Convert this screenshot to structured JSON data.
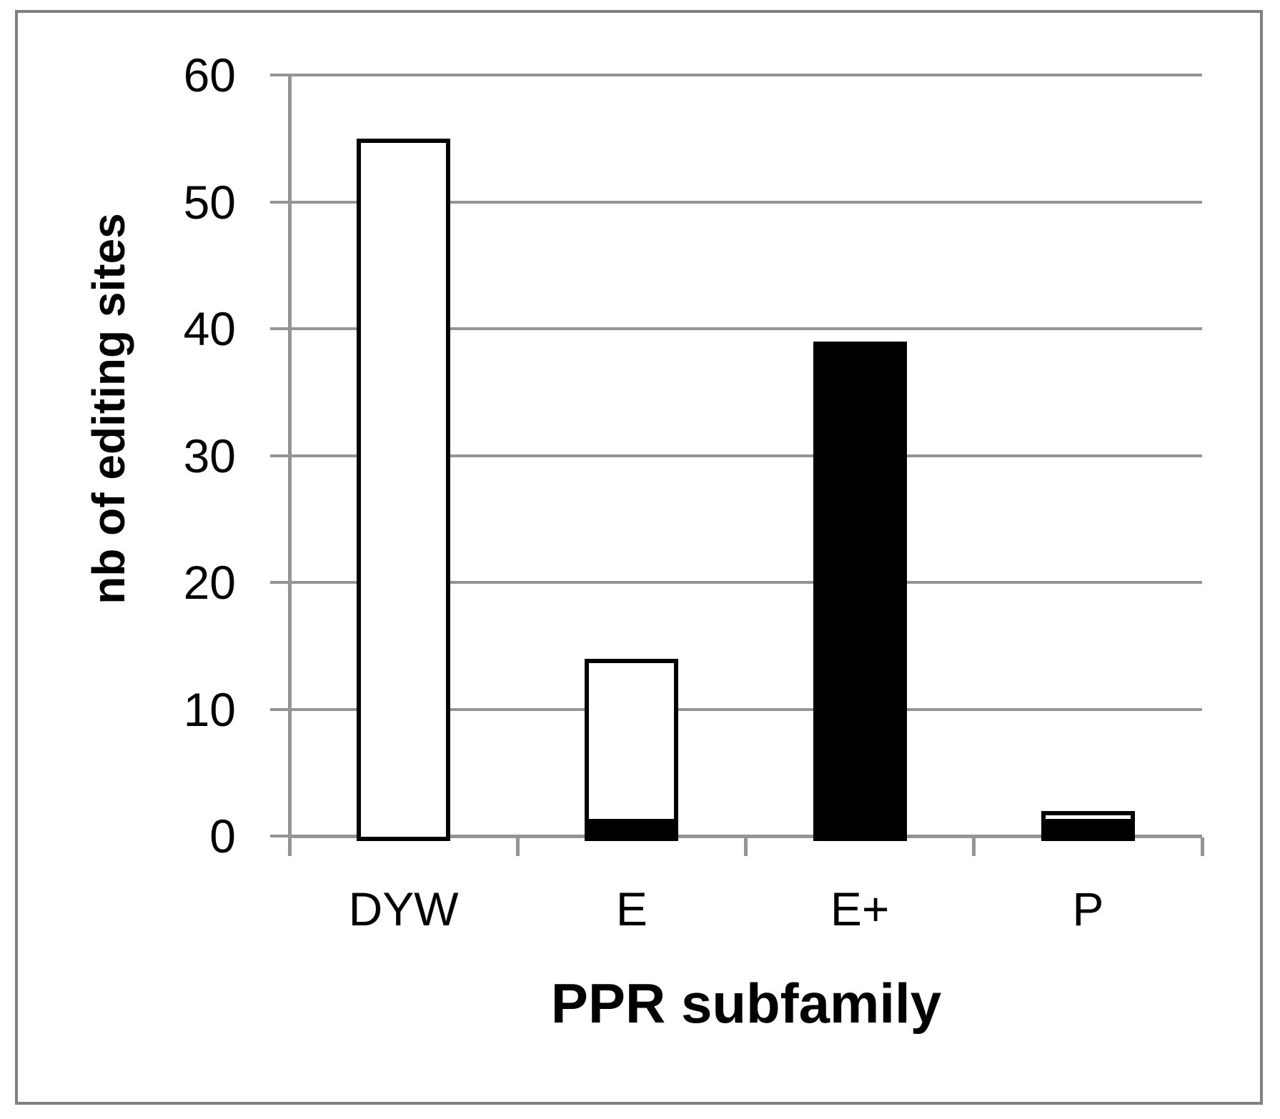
{
  "figure": {
    "background": "#ffffff",
    "border_color": "#808080"
  },
  "chart_data": {
    "type": "bar",
    "stacked": true,
    "title": "",
    "xlabel": "PPR subfamily",
    "ylabel": "nb of editing sites",
    "categories": [
      "DYW",
      "E",
      "E+",
      "P"
    ],
    "series": [
      {
        "name": "black-fill",
        "color": "#000000",
        "values": [
          0,
          1,
          39,
          1
        ]
      },
      {
        "name": "white-fill",
        "color": "#ffffff",
        "border_color": "#000000",
        "values": [
          55,
          13,
          0,
          1
        ]
      }
    ],
    "totals": [
      55,
      14,
      39,
      2
    ],
    "ylim": [
      0,
      60
    ],
    "yticks": [
      0,
      10,
      20,
      30,
      40,
      50,
      60
    ],
    "grid": "horizontal-only",
    "gridline_color": "#949494",
    "axis_color": "#949494",
    "text_color": "#000000",
    "legend": "none"
  }
}
